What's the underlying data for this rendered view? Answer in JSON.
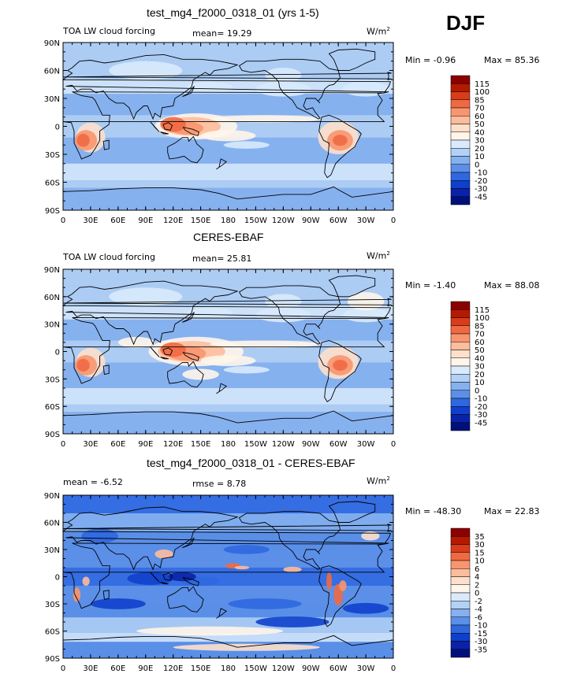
{
  "season": "DJF",
  "xticks": [
    "0",
    "30E",
    "60E",
    "90E",
    "120E",
    "150E",
    "180",
    "150W",
    "120W",
    "90W",
    "60W",
    "30W",
    "0"
  ],
  "yticks": [
    "90N",
    "60N",
    "30N",
    "0",
    "30S",
    "60S",
    "90S"
  ],
  "panels": [
    {
      "title": "test_mg4_f2000_0318_01 (yrs 1-5)",
      "left_label": "TOA LW cloud forcing",
      "center_label": "mean=   19.29",
      "units": "W/m",
      "units_exp": "2",
      "min_label": "Min =   -0.96",
      "max_label": "Max =   85.36",
      "colorbar_labels": [
        "115",
        "100",
        "85",
        "70",
        "60",
        "50",
        "40",
        "30",
        "20",
        "10",
        "0",
        "-10",
        "-20",
        "-30",
        "-45"
      ],
      "colors": [
        "#8b0000",
        "#b51a00",
        "#d83c1a",
        "#ef6a42",
        "#f9956e",
        "#fdbd9c",
        "#fde0cb",
        "#fff5ea",
        "#d8eafc",
        "#b3d1f5",
        "#86b1ef",
        "#5b8fe8",
        "#2f67e0",
        "#0f40cc",
        "#0a22a8",
        "#00107a"
      ]
    },
    {
      "title": "CERES-EBAF",
      "left_label": "TOA LW cloud forcing",
      "center_label": "mean=   25.81",
      "units": "W/m",
      "units_exp": "2",
      "min_label": "Min =   -1.40",
      "max_label": "Max =   88.08",
      "colorbar_labels": [
        "115",
        "100",
        "85",
        "70",
        "60",
        "50",
        "40",
        "30",
        "20",
        "10",
        "0",
        "-10",
        "-20",
        "-30",
        "-45"
      ],
      "colors": [
        "#8b0000",
        "#b51a00",
        "#d83c1a",
        "#ef6a42",
        "#f9956e",
        "#fdbd9c",
        "#fde0cb",
        "#fff5ea",
        "#d8eafc",
        "#b3d1f5",
        "#86b1ef",
        "#5b8fe8",
        "#2f67e0",
        "#0f40cc",
        "#0a22a8",
        "#00107a"
      ]
    },
    {
      "title": "test_mg4_f2000_0318_01 - CERES-EBAF",
      "left_label": "mean =   -6.52",
      "center_label": "rmse =    8.78",
      "units": "W/m",
      "units_exp": "2",
      "min_label": "Min = -48.30",
      "max_label": "Max =   22.83",
      "colorbar_labels": [
        "35",
        "30",
        "15",
        "10",
        "6",
        "4",
        "2",
        "0",
        "-2",
        "-4",
        "-6",
        "-10",
        "-15",
        "-30",
        "-35"
      ],
      "colors": [
        "#8b0000",
        "#b51a00",
        "#d83c1a",
        "#ef6a42",
        "#f9956e",
        "#fdbd9c",
        "#fde0cb",
        "#fff5ea",
        "#d8eafc",
        "#b3d1f5",
        "#86b1ef",
        "#5b8fe8",
        "#2f67e0",
        "#0f40cc",
        "#0a22a8",
        "#00107a"
      ]
    }
  ],
  "chart_data": [
    {
      "type": "heatmap",
      "title": "test_mg4_f2000_0318_01 (yrs 1-5)",
      "variable": "TOA LW cloud forcing",
      "units": "W/m2",
      "mean": 19.29,
      "min": -0.96,
      "max": 85.36,
      "x_range": [
        0,
        360
      ],
      "y_range": [
        -90,
        90
      ],
      "levels": [
        -45,
        -30,
        -20,
        -10,
        0,
        10,
        20,
        30,
        40,
        50,
        60,
        70,
        85,
        100,
        115
      ]
    },
    {
      "type": "heatmap",
      "title": "CERES-EBAF",
      "variable": "TOA LW cloud forcing",
      "units": "W/m2",
      "mean": 25.81,
      "min": -1.4,
      "max": 88.08,
      "x_range": [
        0,
        360
      ],
      "y_range": [
        -90,
        90
      ],
      "levels": [
        -45,
        -30,
        -20,
        -10,
        0,
        10,
        20,
        30,
        40,
        50,
        60,
        70,
        85,
        100,
        115
      ]
    },
    {
      "type": "heatmap",
      "title": "test_mg4_f2000_0318_01 - CERES-EBAF",
      "units": "W/m2",
      "mean": -6.52,
      "rmse": 8.78,
      "min": -48.3,
      "max": 22.83,
      "x_range": [
        0,
        360
      ],
      "y_range": [
        -90,
        90
      ],
      "levels": [
        -35,
        -30,
        -15,
        -10,
        -6,
        -4,
        -2,
        0,
        2,
        4,
        6,
        10,
        15,
        30,
        35
      ]
    }
  ]
}
